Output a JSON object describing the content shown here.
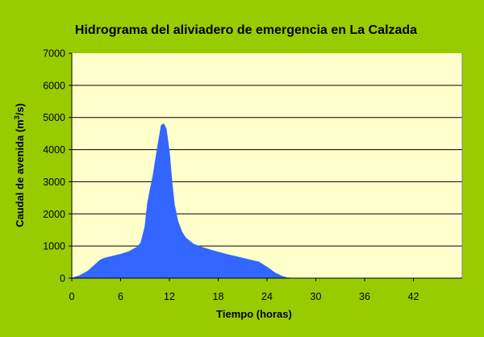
{
  "chart_data": {
    "type": "area",
    "title": "Hidrograma del aliviadero de emergencia en La Calzada",
    "xlabel": "Tiempo (horas)",
    "ylabel_main": "Caudal de avenida (m",
    "ylabel_sup": "3",
    "ylabel_end": "/s)",
    "xlim": [
      0,
      48
    ],
    "ylim": [
      0,
      7000
    ],
    "xticks": [
      0,
      6,
      12,
      18,
      24,
      30,
      36,
      42
    ],
    "yticks": [
      0,
      1000,
      2000,
      3000,
      4000,
      5000,
      6000,
      7000
    ],
    "grid": true,
    "colors": {
      "background": "#99cc00",
      "plot_area": "#ffffcc",
      "fill": "#3366ff",
      "grid": "#000000"
    },
    "series": [
      {
        "x": [
          0,
          1,
          2,
          3,
          3.5,
          4,
          5,
          6,
          7,
          8,
          8.5,
          9,
          9.3,
          9.6,
          10,
          10.5,
          11,
          11.3,
          11.6,
          12,
          12.3,
          12.6,
          13,
          13.5,
          14,
          15,
          16,
          17,
          18,
          19,
          20,
          21,
          22,
          23,
          24,
          25,
          26,
          26.5,
          27,
          28,
          30,
          36,
          42,
          48
        ],
        "y": [
          0,
          80,
          220,
          450,
          560,
          620,
          680,
          740,
          820,
          960,
          1100,
          1600,
          2300,
          2700,
          3200,
          4000,
          4750,
          4800,
          4650,
          3900,
          3000,
          2300,
          1800,
          1450,
          1250,
          1050,
          960,
          880,
          810,
          740,
          680,
          620,
          560,
          500,
          340,
          160,
          40,
          10,
          0,
          0,
          0,
          0,
          0,
          0
        ]
      }
    ]
  }
}
